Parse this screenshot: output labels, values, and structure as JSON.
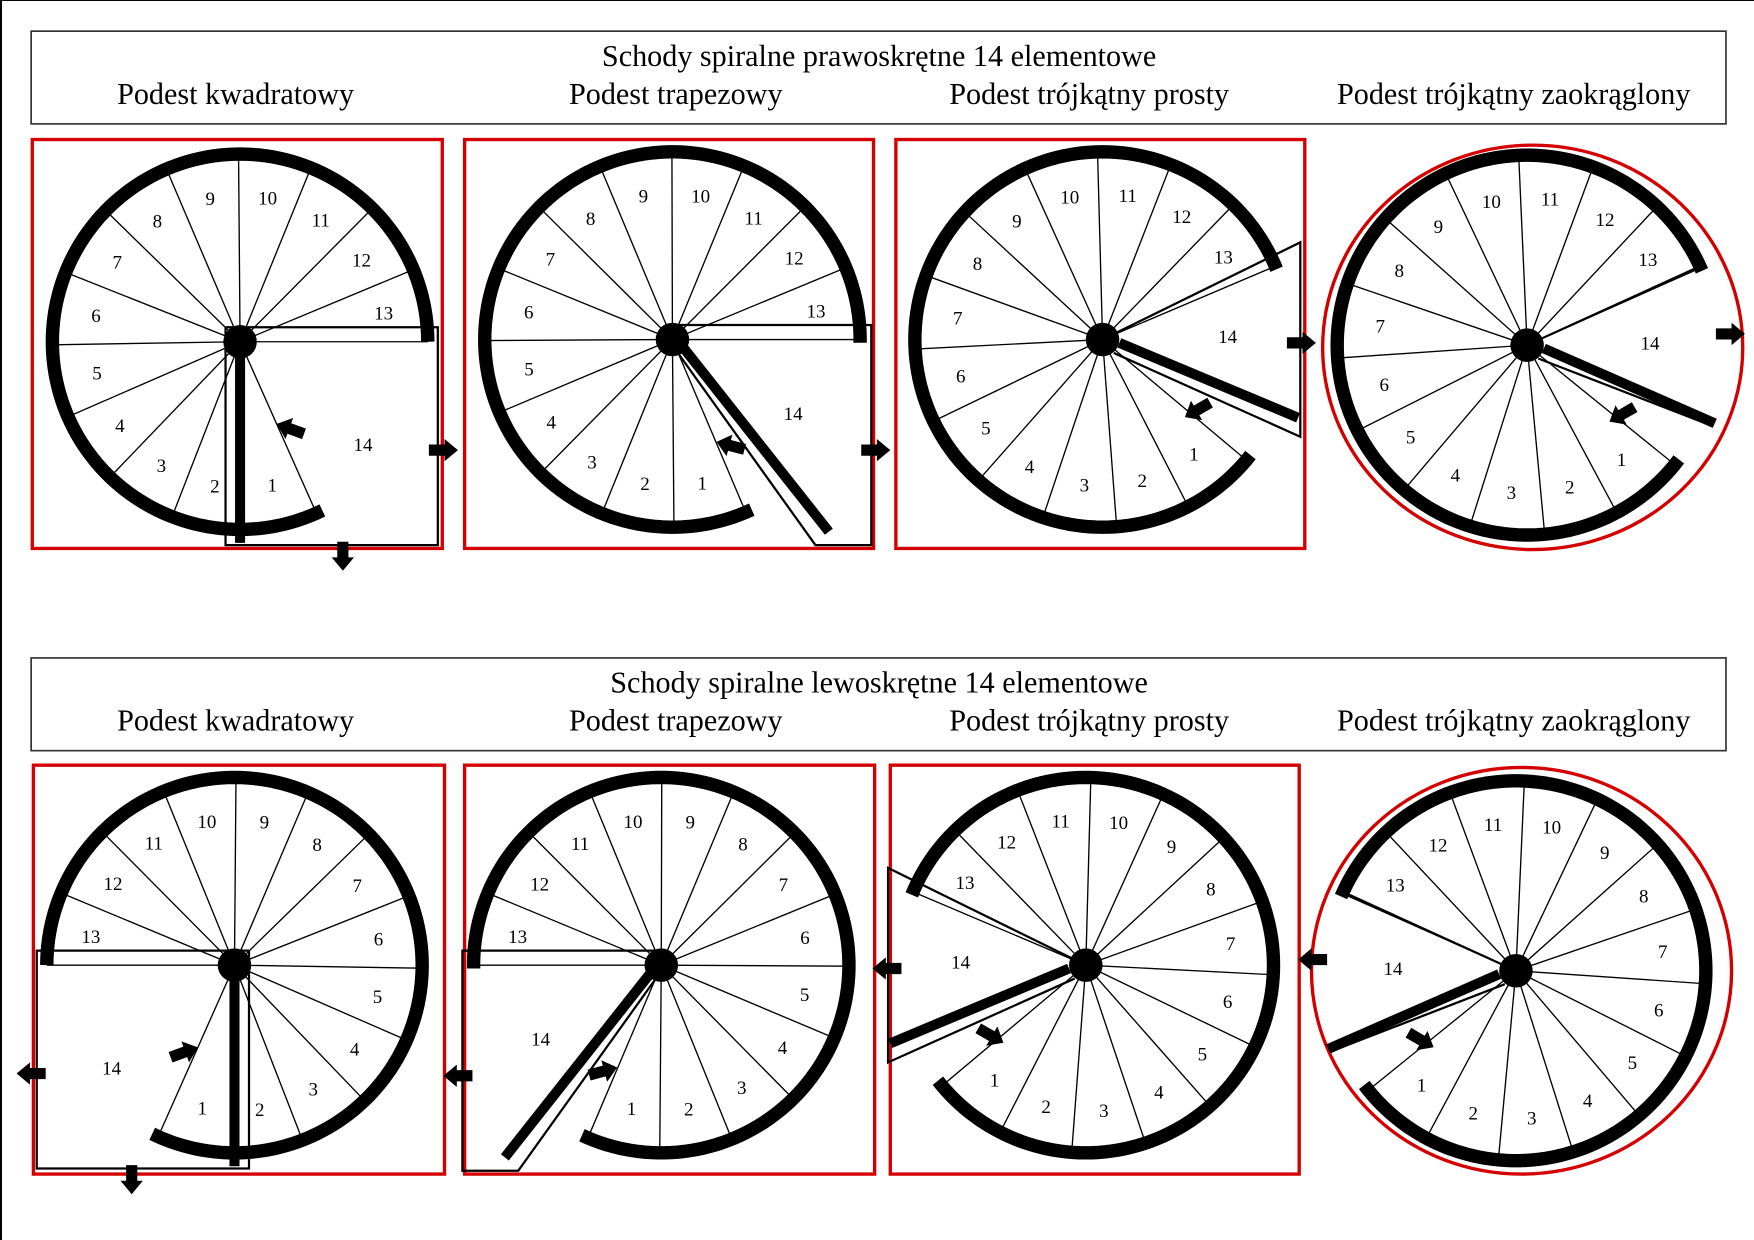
{
  "sections": [
    {
      "title": "Schody spiralne prawoskrętne 14 elementowe",
      "direction": "right",
      "panels": [
        {
          "label": "Podest kwadratowy",
          "landing": "square"
        },
        {
          "label": "Podest trapezowy",
          "landing": "trapezoid"
        },
        {
          "label": "Podest trójkątny prosty",
          "landing": "triangle"
        },
        {
          "label": "Podest trójkątny zaokrąglony",
          "landing": "rounded"
        }
      ]
    },
    {
      "title": "Schody spiralne lewoskrętne 14 elementowe",
      "direction": "left",
      "panels": [
        {
          "label": "Podest kwadratowy",
          "landing": "square"
        },
        {
          "label": "Podest trapezowy",
          "landing": "trapezoid"
        },
        {
          "label": "Podest trójkątny prosty",
          "landing": "triangle"
        },
        {
          "label": "Podest trójkątny zaokrąglony",
          "landing": "rounded"
        }
      ]
    }
  ],
  "step_labels": [
    "1",
    "2",
    "3",
    "4",
    "5",
    "6",
    "7",
    "8",
    "9",
    "10",
    "11",
    "12",
    "13",
    "14"
  ],
  "colors": {
    "frame": "#d40000",
    "ink": "#000000"
  }
}
